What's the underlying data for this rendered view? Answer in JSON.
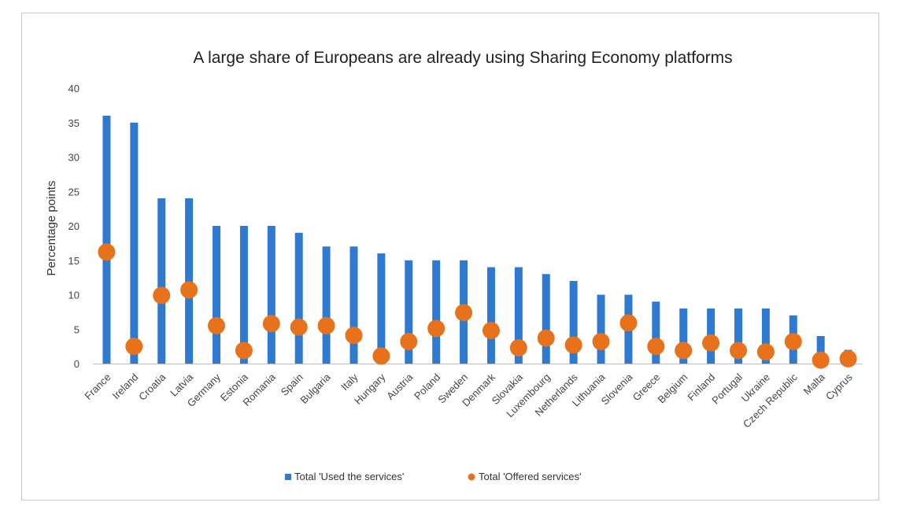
{
  "chart_data": {
    "type": "bar",
    "title": "A large share of Europeans are already using Sharing Economy platforms",
    "xlabel": "",
    "ylabel": "Percentage points",
    "ylim": [
      0,
      40
    ],
    "yticks": [
      0,
      5,
      10,
      15,
      20,
      25,
      30,
      35,
      40
    ],
    "grid": false,
    "legend_position": "bottom",
    "categories": [
      "France",
      "Ireland",
      "Croatia",
      "Latvia",
      "Germany",
      "Estonia",
      "Romania",
      "Spain",
      "Bulgaria",
      "Italy",
      "Hungary",
      "Austria",
      "Poland",
      "Sweden",
      "Denmark",
      "Slovakia",
      "Luxembourg",
      "Netherlands",
      "Lithuania",
      "Slovenia",
      "Greece",
      "Belgium",
      "Finland",
      "Portugal",
      "Ukraine",
      "Czech Republic",
      "Malta",
      "Cyprus"
    ],
    "series": [
      {
        "name": "Total 'Used the services'",
        "kind": "bar",
        "color": "#2f7ad1",
        "values": [
          36,
          35,
          24,
          24,
          20,
          20,
          20,
          19,
          17,
          17,
          16,
          15,
          15,
          15,
          14,
          14,
          13,
          12,
          10,
          10,
          9,
          8,
          8,
          8,
          8,
          7,
          4,
          2
        ]
      },
      {
        "name": "Total 'Offered services'",
        "kind": "marker",
        "color": "#e8711c",
        "values": [
          16.2,
          2.5,
          9.9,
          10.7,
          5.5,
          1.9,
          5.8,
          5.3,
          5.5,
          4.1,
          1.1,
          3.2,
          5.1,
          7.4,
          4.8,
          2.3,
          3.7,
          2.7,
          3.2,
          5.9,
          2.5,
          1.9,
          3.0,
          1.9,
          1.7,
          3.2,
          0.5,
          0.7
        ]
      }
    ]
  }
}
